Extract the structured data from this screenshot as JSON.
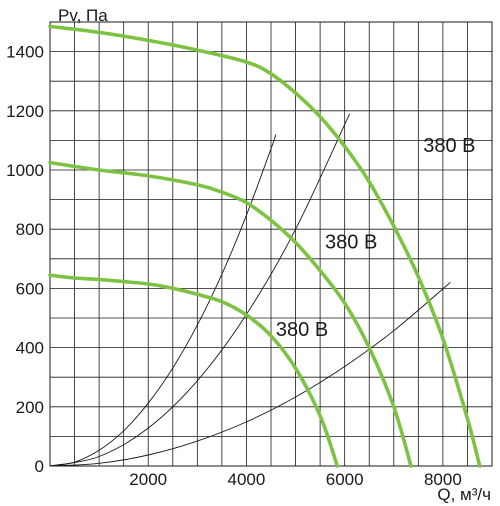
{
  "chart_data": {
    "type": "line",
    "ylabel": "Pv, Па",
    "xlabel": "Q, м³/ч",
    "xlim": [
      0,
      9000
    ],
    "ylim": [
      0,
      1500
    ],
    "x_ticks": [
      2000,
      4000,
      6000,
      8000
    ],
    "x_tick_labels": [
      "2000",
      "4000",
      "6000",
      "8000"
    ],
    "y_ticks": [
      0,
      200,
      400,
      600,
      800,
      1000,
      1200,
      1400
    ],
    "y_tick_labels": [
      "0",
      "200",
      "400",
      "600",
      "800",
      "1000",
      "1200",
      "1400"
    ],
    "grid": true,
    "colors": {
      "fan_curve": "#7dc242",
      "system_curve": "#1a1a1a",
      "grid": "#1a1a1a"
    },
    "fan_curves": [
      {
        "label": "380 В",
        "label_at": [
          7600,
          1060
        ],
        "x": [
          0,
          1000,
          2000,
          3000,
          4000,
          4500,
          5000,
          5500,
          6000,
          6500,
          7000,
          7500,
          8000,
          8500,
          8750
        ],
        "y": [
          1485,
          1465,
          1438,
          1405,
          1365,
          1325,
          1260,
          1180,
          1080,
          960,
          810,
          640,
          430,
          160,
          0
        ]
      },
      {
        "label": "380 В",
        "label_at": [
          5600,
          735
        ],
        "x": [
          0,
          1000,
          2000,
          3000,
          3500,
          4000,
          4500,
          5000,
          5500,
          6000,
          6500,
          7000,
          7350
        ],
        "y": [
          1025,
          1000,
          980,
          950,
          925,
          890,
          830,
          755,
          660,
          550,
          400,
          200,
          0
        ]
      },
      {
        "label": "380 В",
        "label_at": [
          4600,
          440
        ],
        "x": [
          0,
          500,
          1000,
          2000,
          2500,
          3000,
          3500,
          4000,
          4500,
          5000,
          5500,
          5850
        ],
        "y": [
          645,
          635,
          630,
          615,
          600,
          580,
          555,
          510,
          440,
          330,
          170,
          0
        ]
      }
    ],
    "system_curves": [
      {
        "x": [
          0,
          500,
          1000,
          1500,
          2000,
          2500,
          3000,
          3500,
          4000,
          4500,
          4600
        ],
        "y": [
          0,
          13,
          53,
          119,
          212,
          331,
          476,
          648,
          847,
          1072,
          1120
        ]
      },
      {
        "x": [
          0,
          1000,
          2000,
          3000,
          4000,
          5000,
          6100
        ],
        "y": [
          0,
          32,
          128,
          288,
          512,
          800,
          1190
        ]
      },
      {
        "x": [
          0,
          1000,
          2000,
          3000,
          4000,
          5000,
          6000,
          7000,
          8150
        ],
        "y": [
          0,
          9,
          37,
          84,
          149,
          233,
          336,
          457,
          620
        ]
      }
    ]
  }
}
